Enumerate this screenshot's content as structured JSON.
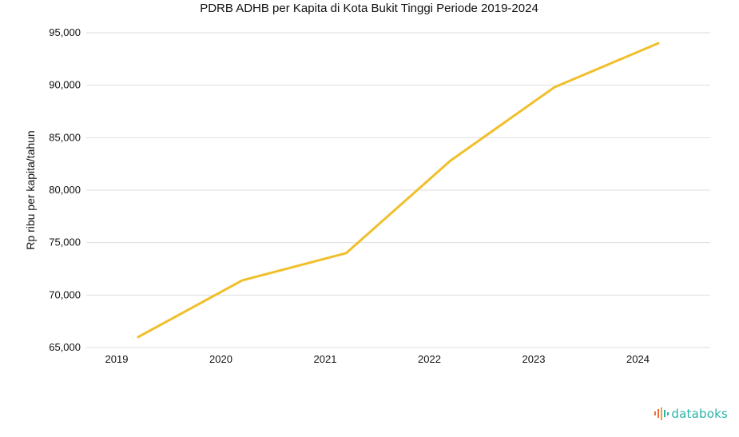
{
  "chart_data": {
    "type": "line",
    "title": "PDRB ADHB per Kapita di Kota Bukit Tinggi Periode 2019-2024",
    "xlabel": "",
    "ylabel": "Rp ribu per kapita/tahun",
    "categories": [
      "2019",
      "2020",
      "2021",
      "2022",
      "2023",
      "2024"
    ],
    "x_ticks": [
      "2019",
      "2020",
      "2021",
      "2022",
      "2023",
      "2024"
    ],
    "y_ticks": [
      "65,000",
      "70,000",
      "75,000",
      "80,000",
      "85,000",
      "90,000",
      "95,000"
    ],
    "ylim": [
      65000,
      95000
    ],
    "grid": true,
    "series": [
      {
        "values": [
          66000,
          71400,
          74000,
          82800,
          89800,
          94000
        ],
        "color": "#f0bf2b"
      }
    ]
  },
  "brand": {
    "name": "databoks",
    "color": "#2bb3a7",
    "icon": "databoks-bars-icon"
  }
}
